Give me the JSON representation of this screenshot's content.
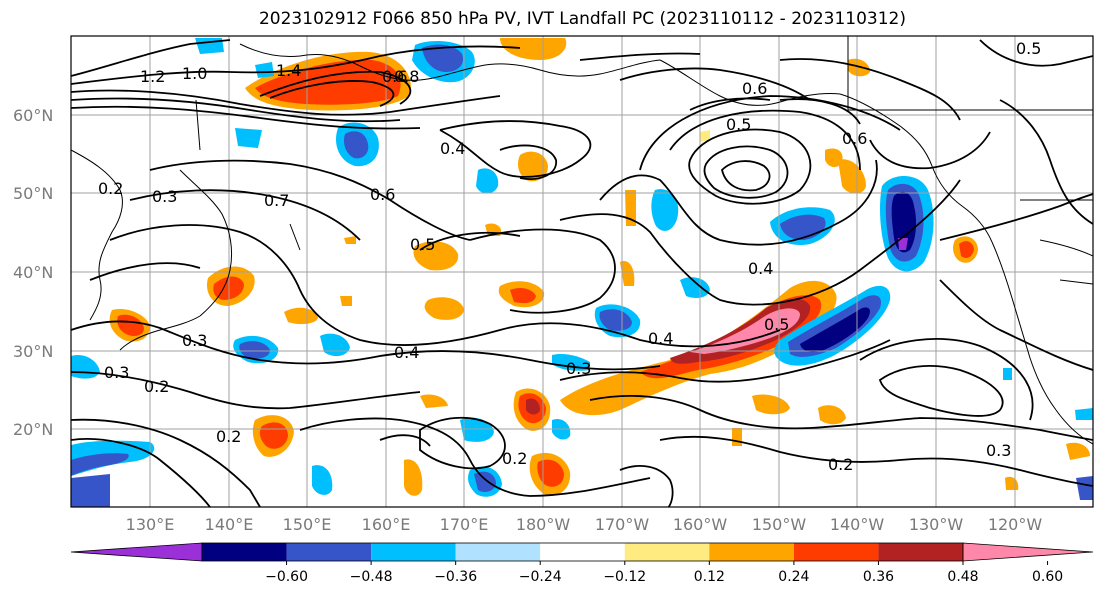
{
  "title": "2023102912 F066 850 hPa PV, IVT Landfall PC (2023110112 - 2023110312)",
  "lat_labels": [
    "60°N",
    "50°N",
    "40°N",
    "30°N",
    "20°N"
  ],
  "lon_labels": [
    "130°E",
    "140°E",
    "150°E",
    "160°E",
    "170°E",
    "180°W",
    "170°W",
    "160°W",
    "150°W",
    "140°W",
    "130°W",
    "120°W"
  ],
  "colorbar": {
    "colors": [
      "#9b30d9",
      "#000080",
      "#3655c8",
      "#00bfff",
      "#b0e2ff",
      "#ffffff",
      "#ffeb80",
      "#ffa500",
      "#ff3c00",
      "#b22222",
      "#ff88aa"
    ],
    "tick_labels": [
      "−0.60",
      "−0.48",
      "−0.36",
      "−0.24",
      "−0.12",
      "0.12",
      "0.24",
      "0.36",
      "0.48",
      "0.60"
    ]
  },
  "contour_labels": [
    "1.0",
    "1.2",
    "1.4",
    "0.8",
    "0.6",
    "0.5",
    "0.4",
    "0.3",
    "0.2",
    "0.7",
    "0.5",
    "0.4",
    "0.3",
    "0.2",
    "0.6",
    "0.3",
    "0.2",
    "0.4",
    "0.5",
    "0.3",
    "0.2",
    "0.3",
    "0.2",
    "0.6",
    "0.5",
    "0.6",
    "0.4"
  ],
  "colors": {
    "contour": "#000000",
    "grid": "#a0a0a0",
    "coast": "#000000"
  }
}
